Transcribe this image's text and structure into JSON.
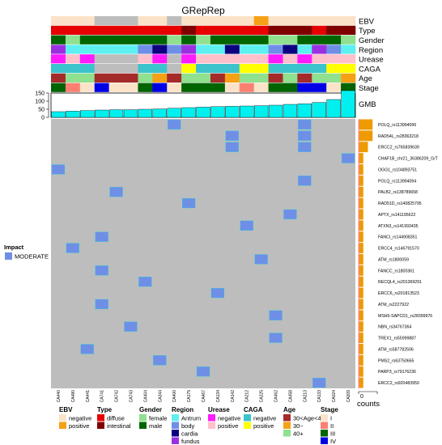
{
  "chart_data": {
    "type": "heatmap",
    "title": "GRepRep",
    "samples": [
      "CA440",
      "CA480",
      "CA441",
      "CA741",
      "CA742",
      "CA743",
      "CA404",
      "CA344",
      "CA400",
      "CA175",
      "CA467",
      "CA134",
      "CA142",
      "CA212",
      "CA225",
      "CA462",
      "CA458",
      "CA213",
      "CA133",
      "CA024",
      "CA209"
    ],
    "annotation_tracks": [
      {
        "name": "EBV",
        "values": [
          "negative",
          "negative",
          "negative",
          "NA",
          "NA",
          "NA",
          "negative",
          "negative",
          "NA",
          "negative",
          "negative",
          "negative",
          "negative",
          "negative",
          "positive",
          "negative",
          "negative",
          "negative",
          "negative",
          "negative",
          "negative"
        ]
      },
      {
        "name": "Type",
        "values": [
          "diffuse",
          "diffuse",
          "diffuse",
          "diffuse",
          "diffuse",
          "diffuse",
          "diffuse",
          "diffuse",
          "diffuse",
          "intestinal",
          "diffuse",
          "diffuse",
          "diffuse",
          "diffuse",
          "diffuse",
          "intestinal",
          "intestinal",
          "intestinal",
          "diffuse",
          "intestinal",
          "intestinal"
        ]
      },
      {
        "name": "Gender",
        "values": [
          "male",
          "female",
          "male",
          "male",
          "male",
          "male",
          "male",
          "male",
          "female",
          "male",
          "female",
          "male",
          "male",
          "male",
          "male",
          "female",
          "female",
          "male",
          "male",
          "male",
          "female"
        ]
      },
      {
        "name": "Region",
        "values": [
          "fundus",
          "Antrum",
          "Antrum",
          "Antrum",
          "Antrum",
          "Antrum",
          "body",
          "cardia",
          "body",
          "fundus",
          "Antrum",
          "Antrum",
          "cardia",
          "Antrum",
          "Antrum",
          "body",
          "cardia",
          "Antrum",
          "fundus",
          "body",
          "Antrum"
        ]
      },
      {
        "name": "Urease",
        "values": [
          "negative",
          "positive",
          "negative",
          "NA",
          "NA",
          "NA",
          "positive",
          "negative",
          "NA",
          "negative",
          "positive",
          "positive",
          "positive",
          "positive",
          "positive",
          "negative",
          "positive",
          "negative",
          "positive",
          "positive",
          "positive"
        ]
      },
      {
        "name": "CAGA",
        "values": [
          "negative",
          "negative",
          "negative",
          "NA",
          "NA",
          "NA",
          "negative",
          "negative",
          "NA",
          "positive",
          "negative",
          "negative",
          "negative",
          "positive",
          "positive",
          "negative",
          "negative",
          "negative",
          "negative",
          "positive",
          "positive"
        ]
      },
      {
        "name": "Age",
        "values": [
          "30<Age<40",
          "40+",
          "40+",
          "30<Age<40",
          "30<Age<40",
          "30<Age<40",
          "40+",
          "30~",
          "30<Age<40",
          "40+",
          "40+",
          "30<Age<40",
          "30~",
          "40+",
          "40+",
          "30<Age<40",
          "40+",
          "30<Age<40",
          "40+",
          "40+",
          "30~"
        ]
      },
      {
        "name": "Stage",
        "values": [
          "III",
          "II",
          "I",
          "IV",
          "I",
          "I",
          "III",
          "IV",
          "I",
          "III",
          "III",
          "III",
          "I",
          "II",
          "I",
          "III",
          "III",
          "IV",
          "IV",
          "I",
          "III"
        ]
      }
    ],
    "gmb": {
      "label": "GMB",
      "ylim": [
        0,
        150
      ],
      "ticks": [
        0,
        50,
        100,
        150
      ],
      "values": [
        35,
        38,
        42,
        45,
        47,
        47,
        50,
        52,
        56,
        60,
        63,
        66,
        68,
        70,
        72,
        75,
        80,
        84,
        92,
        110,
        165
      ]
    },
    "genes": [
      "POLQ_rs113994096",
      "RAD54L_rs28363218",
      "ERCC2_rs765839639",
      "CHAF1B_chr21_36386209_G/T",
      "OGG1_rs104893751",
      "POLQ_rs113994094",
      "PALB2_rs138789658",
      "RAD51D_rs140825795",
      "APTX_rs141195622",
      "ATXN3_rs141993435",
      "FANCI_rs144908351",
      "ERCC4_rs146791570",
      "ATM_rs1800059",
      "FANCC_rs1800361",
      "RECQL4_rs201369291",
      "ERCC6_rs201813523",
      "ATM_rs2227922",
      "MSH5-SAPCD1_rs28399976",
      "NBN_rs34767364",
      "TREX1_rs55999887",
      "ATM_rs587782506",
      "PMS2_rs63750665",
      "PARP3_rs79176236",
      "ERCC2_rs920483959"
    ],
    "mutations": [
      [
        0,
        8
      ],
      [
        0,
        17
      ],
      [
        1,
        12
      ],
      [
        1,
        17
      ],
      [
        2,
        12
      ],
      [
        2,
        17
      ],
      [
        3,
        20
      ],
      [
        4,
        0
      ],
      [
        5,
        17
      ],
      [
        6,
        4
      ],
      [
        7,
        9
      ],
      [
        8,
        16
      ],
      [
        9,
        13
      ],
      [
        10,
        3
      ],
      [
        11,
        1
      ],
      [
        12,
        14
      ],
      [
        13,
        3
      ],
      [
        14,
        6
      ],
      [
        15,
        11
      ],
      [
        16,
        3
      ],
      [
        17,
        15
      ],
      [
        18,
        5
      ],
      [
        19,
        15
      ],
      [
        20,
        2
      ],
      [
        21,
        7
      ],
      [
        22,
        10
      ],
      [
        23,
        18
      ]
    ],
    "counts": {
      "label": "counts",
      "values": [
        3,
        3,
        2,
        1,
        1,
        1,
        1,
        1,
        1,
        1,
        1,
        1,
        1,
        1,
        1,
        1,
        1,
        1,
        1,
        1,
        1,
        1,
        1,
        1
      ]
    },
    "impact_legend": {
      "title": "Impact",
      "items": [
        {
          "label": "MODERATE",
          "color": "#6f8fe6"
        }
      ]
    },
    "colors": {
      "background": "#bdbdbd",
      "mutation": "#6f8fe6",
      "gmb_bar": "#00f0f0",
      "counts_bar": "#ee9a00",
      "EBV": {
        "negative": "#fae3c8",
        "positive": "#f5a116",
        "NA": "#bdbdbd"
      },
      "Type": {
        "diffuse": "#e60000",
        "intestinal": "#800000"
      },
      "Gender": {
        "female": "#8fe08f",
        "male": "#006400"
      },
      "Region": {
        "Antrum": "#5ef0f0",
        "body": "#6f8fe6",
        "cardia": "#0d0080",
        "fundus": "#9b30e0"
      },
      "Urease": {
        "negative": "#ff1aff",
        "positive": "#ffc0cb",
        "NA": "#bdbdbd"
      },
      "CAGA": {
        "negative": "#3cc3cc",
        "positive": "#ffff00",
        "NA": "#bdbdbd"
      },
      "Age": {
        "30<Age<40": "#a52a2a",
        "30~": "#f5a116",
        "40+": "#8fe08f"
      },
      "Stage": {
        "I": "#fae3c8",
        "II": "#fa8072",
        "III": "#006400",
        "IV": "#0000e6"
      }
    },
    "legend_groups": [
      {
        "title": "EBV",
        "items": [
          "negative",
          "positive"
        ]
      },
      {
        "title": "Type",
        "items": [
          "diffuse",
          "intestinal"
        ]
      },
      {
        "title": "Gender",
        "items": [
          "female",
          "male"
        ]
      },
      {
        "title": "Region",
        "items": [
          "Antrum",
          "body",
          "cardia",
          "fundus"
        ]
      },
      {
        "title": "Urease",
        "items": [
          "negative",
          "positive"
        ]
      },
      {
        "title": "CAGA",
        "items": [
          "negative",
          "positive"
        ]
      },
      {
        "title": "Age",
        "items": [
          "30<Age<40",
          "30~",
          "40+"
        ]
      },
      {
        "title": "Stage",
        "items": [
          "I",
          "II",
          "III",
          "IV"
        ]
      }
    ]
  }
}
